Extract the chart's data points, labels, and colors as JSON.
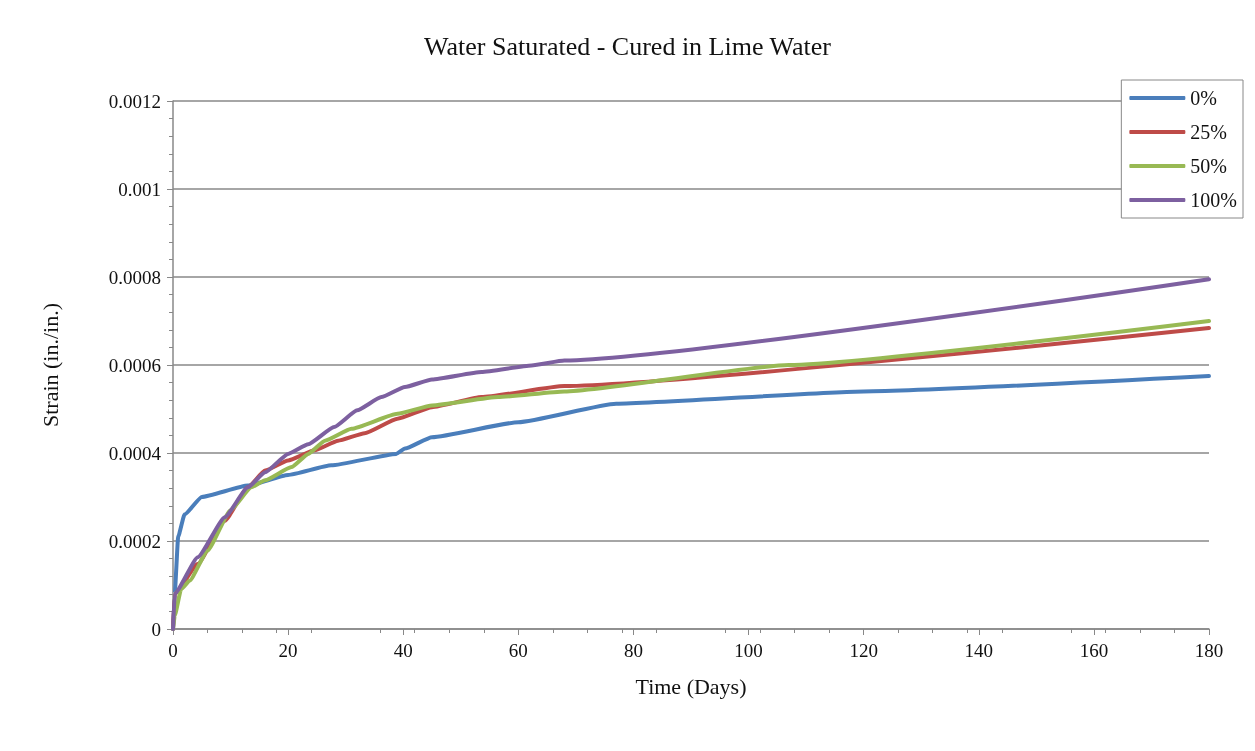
{
  "chart_data": {
    "type": "line",
    "title": "Water Saturated - Cured in Lime Water",
    "xlabel": "Time (Days)",
    "ylabel": "Strain (in./in.)",
    "xlim": [
      0,
      180
    ],
    "xticks": [
      0,
      20,
      40,
      60,
      80,
      100,
      120,
      140,
      160,
      180
    ],
    "ylim": [
      0,
      0.0012
    ],
    "yticks": [
      0,
      0.0002,
      0.0004,
      0.0006,
      0.0008,
      0.001,
      0.0012
    ],
    "grid": "y",
    "legend": "top right",
    "marker": "none",
    "line_style": "solid",
    "series": [
      {
        "name": "0%",
        "color": "#4a7ebb",
        "x": [
          0,
          0.3,
          0.9,
          2,
          5,
          13,
          20,
          27.5,
          38.8,
          40.3,
          45,
          60,
          77,
          120,
          180
        ],
        "values": [
          0,
          8e-05,
          0.00021,
          0.00026,
          0.0003,
          0.000326,
          0.00035,
          0.000372,
          0.000398,
          0.00041,
          0.000436,
          0.00047,
          0.000512,
          0.00054,
          0.000575
        ]
      },
      {
        "name": "25%",
        "color": "#be4b48",
        "x": [
          0,
          0.3,
          4.3,
          9,
          13,
          16,
          20,
          24.6,
          28.7,
          33.3,
          39,
          45,
          53.6,
          68,
          180
        ],
        "values": [
          0,
          8e-05,
          0.000148,
          0.000246,
          0.000322,
          0.00036,
          0.000383,
          0.000406,
          0.000428,
          0.000445,
          0.000478,
          0.000504,
          0.000527,
          0.000552,
          0.000684
        ]
      },
      {
        "name": "50%",
        "color": "#98b954",
        "x": [
          0,
          0.3,
          1.4,
          2.9,
          6,
          10,
          13.6,
          16,
          20.6,
          23.5,
          26.4,
          31,
          39,
          45,
          56.5,
          68,
          107,
          180
        ],
        "values": [
          0,
          3e-05,
          9e-05,
          0.00011,
          0.000178,
          0.00027,
          0.000322,
          0.000338,
          0.000368,
          0.000398,
          0.000428,
          0.000455,
          0.000489,
          0.000508,
          0.000527,
          0.00054,
          0.0006,
          0.0007
        ]
      },
      {
        "name": "100%",
        "color": "#7d60a0",
        "x": [
          0,
          0.3,
          4.3,
          9,
          13,
          16,
          20,
          23.5,
          28,
          32,
          36.2,
          40.3,
          45,
          53.6,
          62.3,
          68,
          180
        ],
        "values": [
          0,
          8e-05,
          0.000163,
          0.000254,
          0.000322,
          0.000356,
          0.000398,
          0.00042,
          0.000459,
          0.000497,
          0.000527,
          0.00055,
          0.000567,
          0.000584,
          0.000599,
          0.00061,
          0.000795
        ]
      }
    ]
  }
}
